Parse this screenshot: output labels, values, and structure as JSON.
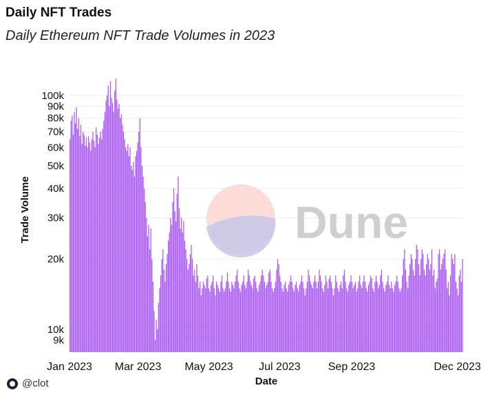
{
  "header": {
    "title": "Daily NFT Trades",
    "subtitle": "Daily Ethereum NFT Trade Volumes in 2023"
  },
  "footer": {
    "handle": "@clot"
  },
  "watermark": {
    "text": "Dune"
  },
  "colors": {
    "bar": "#a855f7",
    "grid": "#eeeeee"
  },
  "chart_data": {
    "type": "bar",
    "title": "Daily NFT Trades",
    "subtitle": "Daily Ethereum NFT Trade Volumes in 2023",
    "xlabel": "Date",
    "ylabel": "Trade Volume",
    "yscale": "log",
    "ylim": [
      8000,
      130000
    ],
    "grid": true,
    "x_ticks": [
      "Jan 2023",
      "Mar 2023",
      "May 2023",
      "Jul 2023",
      "Sep 2023",
      "Dec 2023"
    ],
    "y_ticks": [
      "9k",
      "10k",
      "20k",
      "30k",
      "40k",
      "50k",
      "60k",
      "70k",
      "80k",
      "90k",
      "100k"
    ],
    "x_range": [
      "2023-01-01",
      "2023-12-06"
    ],
    "series": [
      {
        "values": [
          65000,
          78000,
          82000,
          68000,
          85000,
          76000,
          89000,
          72000,
          80000,
          67000,
          75000,
          62000,
          70000,
          68000,
          61000,
          66000,
          60000,
          67000,
          63000,
          58000,
          65000,
          70000,
          64000,
          60000,
          73000,
          68000,
          62000,
          66000,
          70000,
          65000,
          72000,
          78000,
          85000,
          95000,
          100000,
          110000,
          90000,
          115000,
          98000,
          93000,
          85000,
          105000,
          118000,
          96000,
          88000,
          92000,
          80000,
          83000,
          75000,
          70000,
          65000,
          60000,
          58000,
          62000,
          55000,
          60000,
          50000,
          48000,
          52000,
          45000,
          55000,
          58000,
          63000,
          70000,
          80000,
          60000,
          50000,
          45000,
          40000,
          35000,
          30000,
          25000,
          28000,
          22000,
          27000,
          20000,
          16000,
          12000,
          9000,
          11000,
          10000,
          13000,
          15000,
          17000,
          20000,
          22000,
          18000,
          16000,
          19000,
          21000,
          24000,
          26000,
          30000,
          28000,
          35000,
          40000,
          32000,
          29000,
          38000,
          45000,
          33000,
          27000,
          30000,
          26000,
          29000,
          24000,
          22000,
          20000,
          18000,
          19000,
          21000,
          23000,
          20000,
          17000,
          18000,
          16000,
          19000,
          17000,
          15000,
          16000,
          14000,
          15000,
          16000,
          15500,
          15000,
          16500,
          17000,
          15000,
          14500,
          15500,
          16000,
          17000,
          15000,
          14000,
          16000,
          15500,
          15000,
          14500,
          16000,
          17000,
          15000,
          14500,
          15000,
          16000,
          17500,
          16000,
          15000,
          14500,
          16000,
          15500,
          15000,
          16000,
          17000,
          18000,
          16000,
          15000,
          14500,
          15500,
          16000,
          17000,
          15500,
          15000,
          16000,
          18000,
          17000,
          16000,
          15500,
          15000,
          16500,
          17000,
          16000,
          15000,
          14500,
          15500,
          16000,
          17000,
          18000,
          17000,
          16000,
          15000,
          15500,
          16000,
          17500,
          18000,
          16000,
          15000,
          14500,
          15000,
          16000,
          18000,
          20000,
          19000,
          17000,
          16000,
          15000,
          14500,
          15500,
          16000,
          15000,
          14500,
          15500,
          16000,
          17000,
          16000,
          15000,
          14500,
          15500,
          16000,
          15000,
          14500,
          15500,
          16000,
          17000,
          16000,
          15000,
          14000,
          15000,
          16000,
          18000,
          17000,
          16000,
          15500,
          15000,
          16000,
          17000,
          16000,
          15000,
          16000,
          18000,
          17000,
          16000,
          15000,
          14500,
          15500,
          17000,
          16000,
          15000,
          16500,
          17000,
          16000,
          15000,
          14000,
          15000,
          17000,
          16000,
          15000,
          14500,
          15500,
          16000,
          15000,
          17000,
          18000,
          16000,
          15000,
          14500,
          15500,
          16000,
          17000,
          16000,
          15000,
          15500,
          16000,
          14500,
          15000,
          16000,
          17000,
          15500,
          15000,
          16000,
          17000,
          16000,
          15000,
          14500,
          15500,
          16000,
          17000,
          16500,
          15000,
          14500,
          16000,
          17000,
          16000,
          15000,
          15500,
          17000,
          18000,
          16000,
          15000,
          14500,
          15500,
          16000,
          17000,
          15500,
          15000,
          16000,
          15000,
          14500,
          15500,
          16000,
          17000,
          16000,
          15000,
          14500,
          15000,
          17000,
          20000,
          22000,
          18000,
          16000,
          15000,
          17000,
          19000,
          21000,
          20000,
          18000,
          17000,
          20000,
          23000,
          22000,
          19000,
          17000,
          20000,
          22000,
          21000,
          18000,
          17000,
          19000,
          21000,
          20000,
          18000,
          19000,
          22000,
          17000,
          18000,
          15000,
          16000,
          16500,
          21000,
          22000,
          18000,
          19000,
          20000,
          21000,
          22000,
          18000,
          15000,
          16000,
          14000,
          17000,
          21000,
          20000,
          19000,
          21000,
          16000,
          15000,
          14000,
          17000,
          18000,
          16000,
          20000
        ]
      }
    ]
  }
}
